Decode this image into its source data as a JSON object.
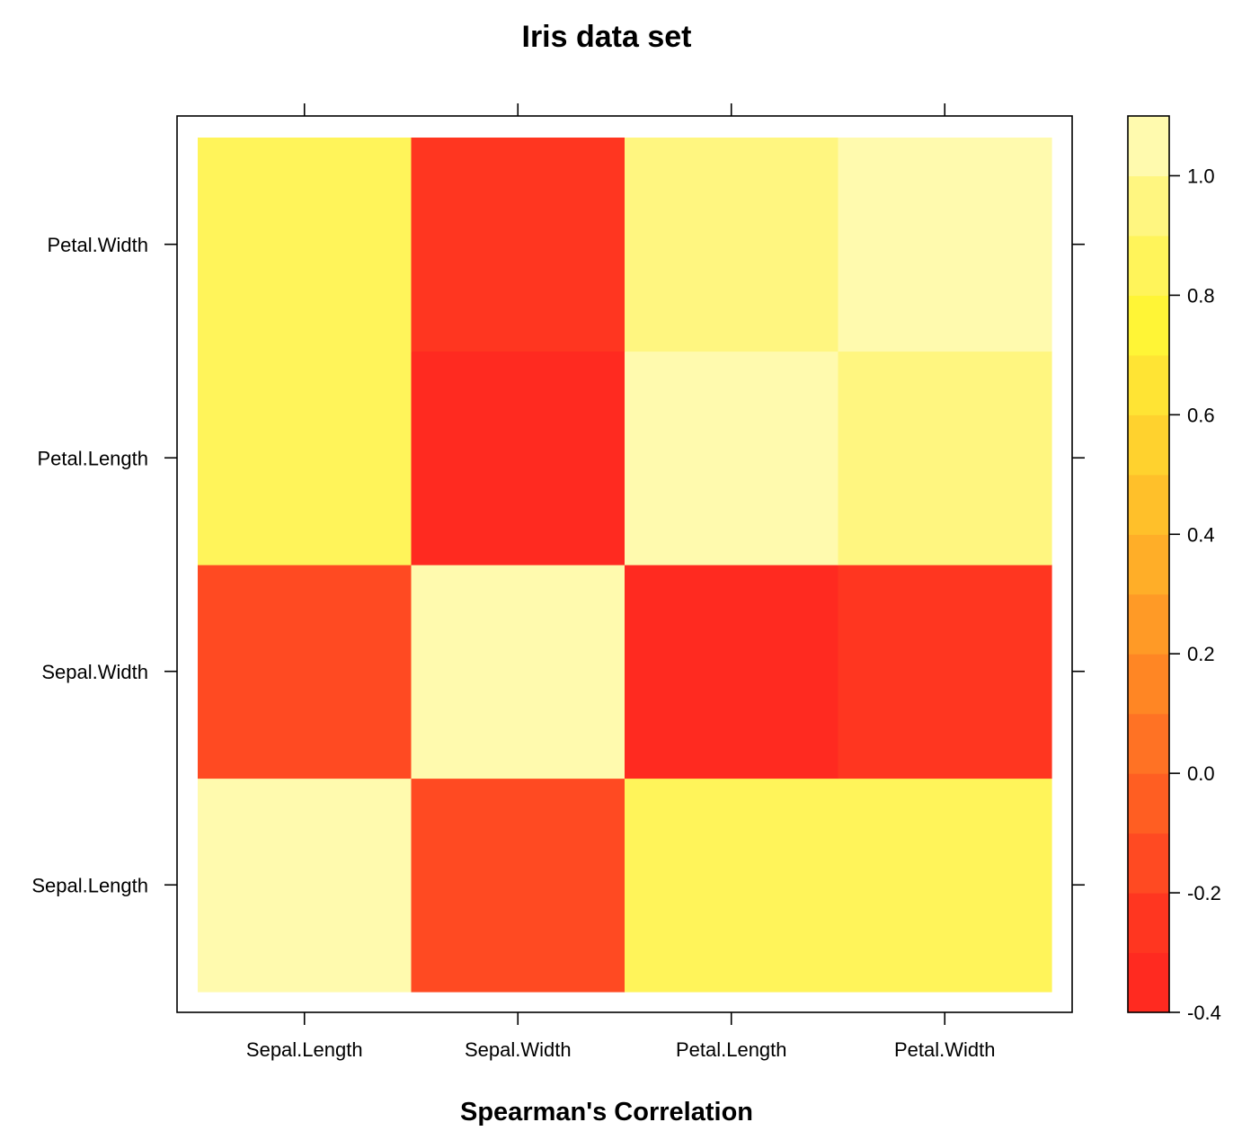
{
  "chart_data": {
    "type": "heatmap",
    "title": "Iris data set",
    "xlabel": "Spearman's Correlation",
    "ylabel": "",
    "x_categories": [
      "Sepal.Length",
      "Sepal.Width",
      "Petal.Length",
      "Petal.Width"
    ],
    "y_categories": [
      "Sepal.Length",
      "Sepal.Width",
      "Petal.Length",
      "Petal.Width"
    ],
    "matrix": [
      [
        1.0,
        -0.17,
        0.88,
        0.83
      ],
      [
        -0.17,
        1.0,
        -0.31,
        -0.29
      ],
      [
        0.88,
        -0.31,
        1.0,
        0.94
      ],
      [
        0.83,
        -0.29,
        0.94,
        1.0
      ]
    ],
    "colorbar": {
      "range": [
        -0.4,
        1.1
      ],
      "breaks": [
        -0.4,
        -0.3,
        -0.2,
        -0.1,
        0.0,
        0.1,
        0.2,
        0.3,
        0.4,
        0.5,
        0.6,
        0.7,
        0.8,
        0.9,
        1.0,
        1.1
      ],
      "colors": [
        "#ff2a20",
        "#ff3620",
        "#ff4a22",
        "#ff5e22",
        "#ff7224",
        "#ff8624",
        "#ff9a26",
        "#ffae28",
        "#ffc02a",
        "#ffd22e",
        "#ffe434",
        "#fff536",
        "#fff45a",
        "#fff680",
        "#fffaae",
        "#fffee0"
      ],
      "tick_values": [
        -0.4,
        -0.2,
        0.0,
        0.2,
        0.4,
        0.6,
        0.8,
        1.0
      ],
      "tick_labels": [
        "-0.4",
        "-0.2",
        "0.0",
        "0.2",
        "0.4",
        "0.6",
        "0.8",
        "1.0"
      ]
    },
    "grid": false,
    "legend_position": "right"
  }
}
